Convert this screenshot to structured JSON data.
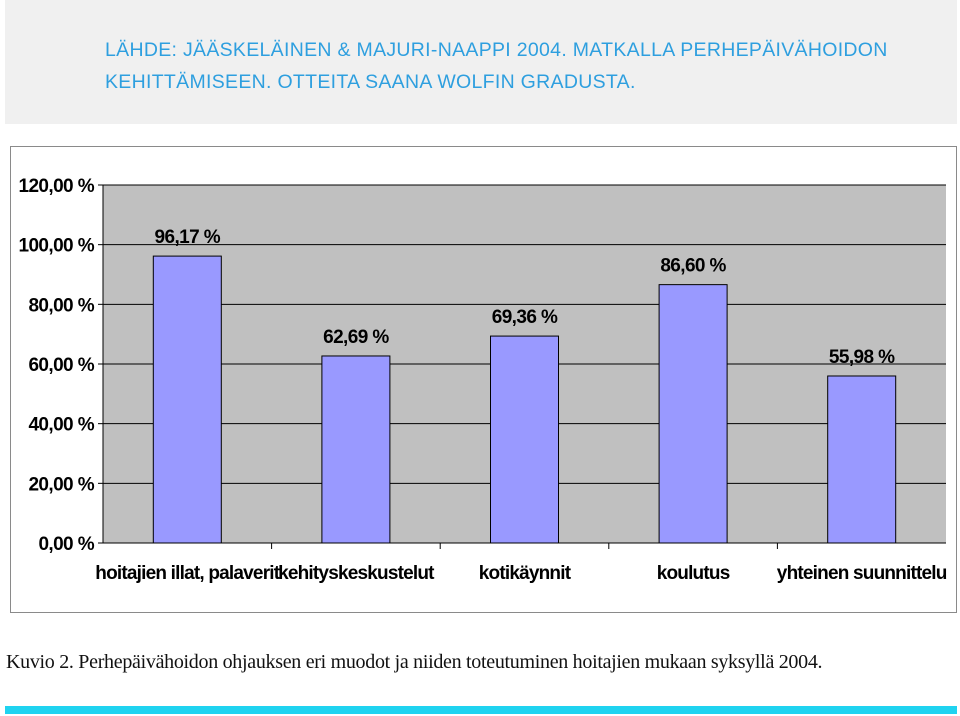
{
  "header": {
    "text": "LÄHDE: JÄÄSKELÄINEN & MAJURI-NAAPPI 2004. MATKALLA PERHEPÄIVÄHOIDON KEHITTÄMISEEN. OTTEITA SAANA WOLFIN GRADUSTA."
  },
  "caption": "Kuvio 2. Perhepäivähoidon ohjauksen eri muodot ja niiden toteutuminen hoitajien mukaan syksyllä 2004.",
  "colors": {
    "header_text": "#2e9fdf",
    "plot_background": "#c0c0c0",
    "bar_fill": "#9999ff",
    "bottom_bar": "#1fd3f0"
  },
  "chart_data": {
    "type": "bar",
    "categories": [
      "hoitajien illat, palaverit",
      "kehityskeskustelut",
      "kotikäynnit",
      "koulutus",
      "yhteinen suunnittelu"
    ],
    "values": [
      96.17,
      62.69,
      69.36,
      86.6,
      55.98
    ],
    "value_labels": [
      "96,17 %",
      "62,69 %",
      "69,36 %",
      "86,60 %",
      "55,98 %"
    ],
    "ylim": [
      0,
      120
    ],
    "yticks": [
      0,
      20,
      40,
      60,
      80,
      100,
      120
    ],
    "ytick_labels": [
      "0,00 %",
      "20,00 %",
      "40,00 %",
      "60,00 %",
      "80,00 %",
      "100,00 %",
      "120,00 %"
    ],
    "grid": true,
    "legend": false,
    "title": "",
    "xlabel": "",
    "ylabel": ""
  }
}
